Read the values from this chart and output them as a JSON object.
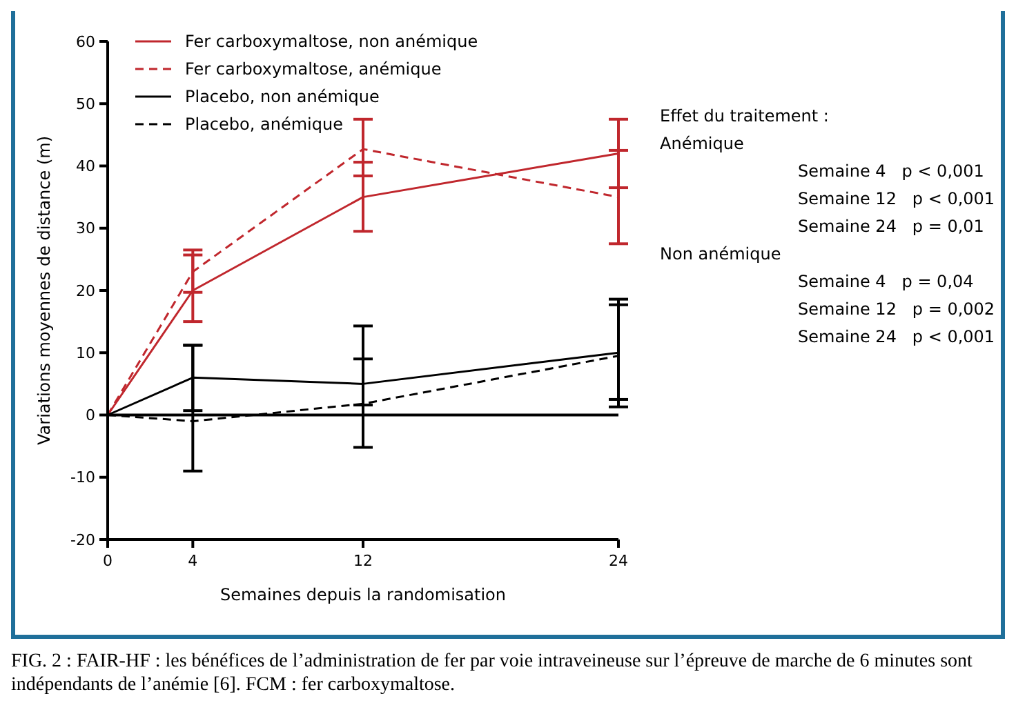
{
  "chart_data": {
    "type": "line",
    "xlabel": "Semaines depuis la randomisation",
    "ylabel": "Variations moyennes de distance (m)",
    "x": [
      0,
      4,
      12,
      24
    ],
    "xlim": [
      0,
      24
    ],
    "xticks": [
      0,
      4,
      12,
      24
    ],
    "ylim": [
      -20,
      60
    ],
    "yticks": [
      -20,
      -10,
      0,
      10,
      20,
      30,
      40,
      50,
      60
    ],
    "grid": false,
    "legend": "top left",
    "marker": "none",
    "series": [
      {
        "name": "Fer carboxymaltose, non anémique",
        "color": "#c0272d",
        "line_style": "solid",
        "values": [
          0,
          20,
          35,
          42
        ],
        "errors": [
          null,
          [
            15,
            25.7
          ],
          [
            29.5,
            40.6
          ],
          [
            36.5,
            47.5
          ]
        ]
      },
      {
        "name": "Fer carboxymaltose, anémique",
        "color": "#c0272d",
        "line_style": "dashed",
        "values": [
          0,
          23,
          42.7,
          35
        ],
        "errors": [
          null,
          [
            19.7,
            26.5
          ],
          [
            38.4,
            47.5
          ],
          [
            27.5,
            42.5
          ]
        ]
      },
      {
        "name": "Placebo, non anémique",
        "color": "#000000",
        "line_style": "solid",
        "values": [
          0,
          6,
          5,
          10
        ],
        "errors": [
          null,
          [
            0.7,
            11.2
          ],
          [
            1.6,
            14.3
          ],
          [
            2.5,
            17.7
          ]
        ]
      },
      {
        "name": "Placebo, anémique",
        "color": "#000000",
        "line_style": "dashed",
        "values": [
          0,
          -1,
          1.8,
          9.5
        ],
        "errors": [
          null,
          [
            -9,
            11.2
          ],
          [
            -5.2,
            9
          ],
          [
            1.3,
            18.6
          ]
        ]
      }
    ],
    "ref_lines": [
      {
        "axis": "y",
        "value": 0,
        "color": "#000000"
      }
    ],
    "annotations": [
      "Effet du traitement :",
      "Anémique",
      "Semaine 4   p < 0,001",
      "Semaine 12   p < 0,001",
      "Semaine 24   p = 0,01",
      "Non anémique",
      "Semaine 4   p = 0,04",
      "Semaine 12   p = 0,002",
      "Semaine 24   p < 0,001",
      "FIG. 2 : FAIR-HF : les bénéfices de l’administration de fer par voie intraveineuse sur l’épreuve de marche de 6 minutes sont indépendants de l’anémie [6]. FCM : fer carboxymaltose."
    ]
  }
}
